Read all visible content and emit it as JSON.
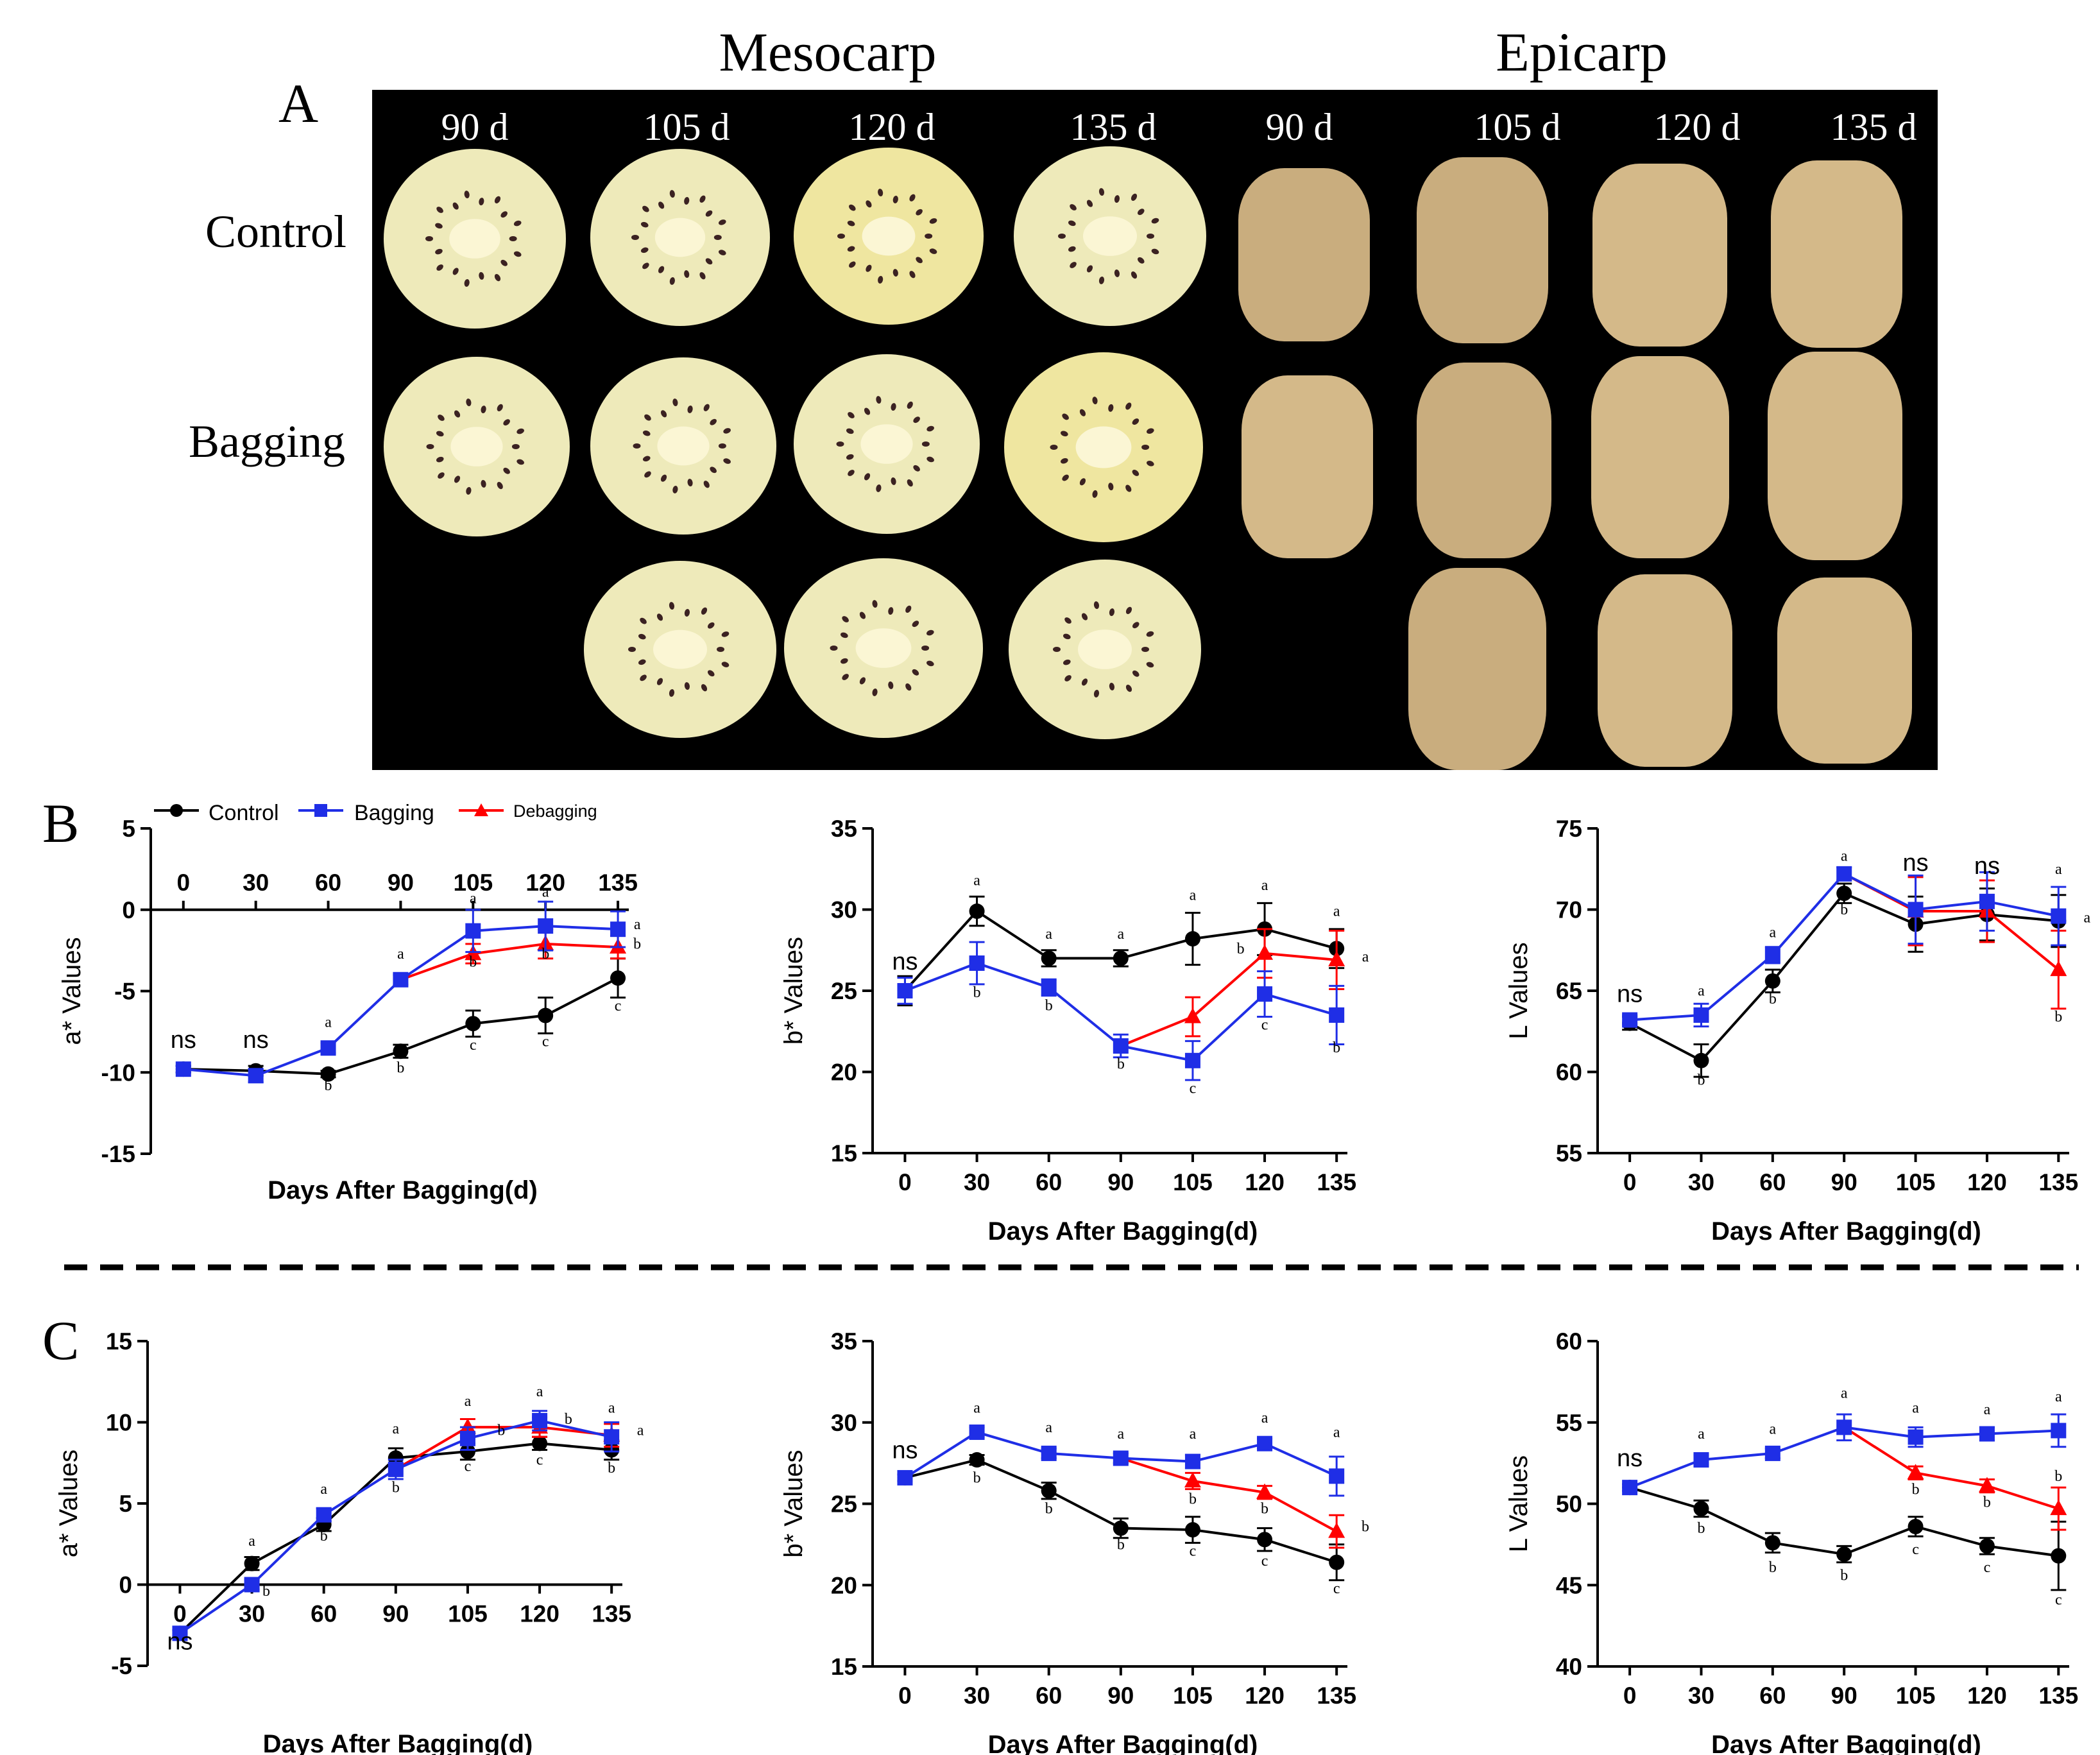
{
  "panel_a": {
    "label": "A",
    "group_titles": [
      "Mesocarp",
      "Epicarp"
    ],
    "stage_labels": [
      "90 d",
      "105 d",
      "120 d",
      "135 d",
      "90 d",
      "105 d",
      "120 d",
      "135 d"
    ],
    "row_labels": [
      "Control",
      "Bagging"
    ],
    "colors": {
      "background": "#000000",
      "flesh": "#eeeaba",
      "flesh_yellow": "#efe6a0",
      "core": "#fbf6d4",
      "seed": "#3b2222",
      "skin": "#c9ad7e",
      "skin_light": "#d4b989"
    }
  },
  "legend": {
    "control": "Control",
    "bagging": "Bagging",
    "debagging": "Debagging"
  },
  "series_colors": {
    "control": "#000000",
    "bagging": "#1f2ee6",
    "debagging": "#ff0000"
  },
  "panel_labels": {
    "b": "B",
    "c": "C"
  },
  "chart_data": [
    {
      "id": "B-a",
      "type": "line",
      "panel": "B",
      "title": "",
      "xlabel": "Days After Bagging(d)",
      "ylabel": "a* Values",
      "x": [
        0,
        30,
        60,
        90,
        105,
        120,
        135
      ],
      "xticks": [
        "0",
        "30",
        "60",
        "90",
        "105",
        "120",
        "135"
      ],
      "ylim": [
        -15,
        5
      ],
      "yticks": [
        "-15",
        "-10",
        "-5",
        "0",
        "5"
      ],
      "ytick_values": [
        -15,
        -10,
        -5,
        0,
        5
      ],
      "xaxis_at_zero": true,
      "series": [
        {
          "name": "Control",
          "values": [
            -9.8,
            -9.9,
            -10.1,
            -8.7,
            -7.0,
            -6.5,
            -4.2
          ],
          "errors": [
            0.2,
            0.3,
            0.2,
            0.4,
            0.8,
            1.1,
            1.2
          ]
        },
        {
          "name": "Bagging",
          "values": [
            -9.8,
            -10.2,
            -8.5,
            -4.3,
            -1.3,
            -1.0,
            -1.2
          ],
          "errors": [
            0.2,
            0.4,
            0.3,
            0.3,
            1.3,
            1.5,
            1.1
          ]
        },
        {
          "name": "Debagging",
          "values": [
            null,
            null,
            null,
            -4.3,
            -2.7,
            -2.1,
            -2.3
          ],
          "errors": [
            0,
            0,
            0,
            0,
            0.6,
            0.9,
            0.7
          ]
        }
      ],
      "annotations": [
        {
          "text": "ns",
          "x": 0,
          "y": -8.5,
          "size": "big"
        },
        {
          "text": "ns",
          "x": 30,
          "y": -8.5,
          "size": "big"
        },
        {
          "text": "a",
          "x": 60,
          "y": -7.2
        },
        {
          "text": "b",
          "x": 60,
          "y": -11.1
        },
        {
          "text": "a",
          "x": 90,
          "y": -3.0
        },
        {
          "text": "b",
          "x": 90,
          "y": -10.0
        },
        {
          "text": "a",
          "x": 105,
          "y": 0.4
        },
        {
          "text": "b",
          "x": 105,
          "y": -3.5
        },
        {
          "text": "c",
          "x": 105,
          "y": -8.6
        },
        {
          "text": "a",
          "x": 120,
          "y": 0.8
        },
        {
          "text": "b",
          "x": 120,
          "y": -3.0
        },
        {
          "text": "c",
          "x": 120,
          "y": -8.4
        },
        {
          "text": "a",
          "x": 139,
          "y": -1.2
        },
        {
          "text": "b",
          "x": 139,
          "y": -2.4
        },
        {
          "text": "c",
          "x": 135,
          "y": -6.2
        }
      ]
    },
    {
      "id": "B-b",
      "type": "line",
      "panel": "B",
      "title": "",
      "xlabel": "Days After Bagging(d)",
      "ylabel": "b* Values",
      "x": [
        0,
        30,
        60,
        90,
        105,
        120,
        135
      ],
      "xticks": [
        "0",
        "30",
        "60",
        "90",
        "105",
        "120",
        "135"
      ],
      "ylim": [
        15,
        35
      ],
      "yticks": [
        "15",
        "20",
        "25",
        "30",
        "35"
      ],
      "ytick_values": [
        15,
        20,
        25,
        30,
        35
      ],
      "series": [
        {
          "name": "Control",
          "values": [
            25.0,
            29.9,
            27.0,
            27.0,
            28.2,
            28.8,
            27.6
          ],
          "errors": [
            0.9,
            0.9,
            0.5,
            0.5,
            1.6,
            1.6,
            1.2
          ]
        },
        {
          "name": "Bagging",
          "values": [
            25.0,
            26.7,
            25.2,
            21.6,
            20.7,
            24.8,
            23.5
          ],
          "errors": [
            0.8,
            1.3,
            0.5,
            0.7,
            1.2,
            1.4,
            1.8
          ]
        },
        {
          "name": "Debagging",
          "values": [
            null,
            null,
            null,
            21.6,
            23.4,
            27.3,
            26.9
          ],
          "errors": [
            0,
            0,
            0,
            0,
            1.2,
            1.5,
            1.8
          ]
        }
      ],
      "annotations": [
        {
          "text": "ns",
          "x": 0,
          "y": 26.3,
          "size": "big"
        },
        {
          "text": "a",
          "x": 30,
          "y": 31.5
        },
        {
          "text": "b",
          "x": 30,
          "y": 24.6
        },
        {
          "text": "a",
          "x": 60,
          "y": 28.2
        },
        {
          "text": "b",
          "x": 60,
          "y": 23.8
        },
        {
          "text": "a",
          "x": 90,
          "y": 28.2
        },
        {
          "text": "b",
          "x": 90,
          "y": 20.2
        },
        {
          "text": "a",
          "x": 105,
          "y": 30.6
        },
        {
          "text": "c",
          "x": 105,
          "y": 18.7
        },
        {
          "text": "a",
          "x": 120,
          "y": 31.2
        },
        {
          "text": "b",
          "x": 115,
          "y": 27.3
        },
        {
          "text": "c",
          "x": 120,
          "y": 22.6
        },
        {
          "text": "a",
          "x": 135,
          "y": 29.6
        },
        {
          "text": "a",
          "x": 141,
          "y": 26.8
        },
        {
          "text": "b",
          "x": 135,
          "y": 21.2
        }
      ]
    },
    {
      "id": "B-L",
      "type": "line",
      "panel": "B",
      "title": "",
      "xlabel": "Days After Bagging(d)",
      "ylabel": "L  Values",
      "x": [
        0,
        30,
        60,
        90,
        105,
        120,
        135
      ],
      "xticks": [
        "0",
        "30",
        "60",
        "90",
        "105",
        "120",
        "135"
      ],
      "ylim": [
        55,
        75
      ],
      "yticks": [
        "55",
        "60",
        "65",
        "70",
        "75"
      ],
      "ytick_values": [
        55,
        60,
        65,
        70,
        75
      ],
      "series": [
        {
          "name": "Control",
          "values": [
            63.0,
            60.7,
            65.6,
            71.0,
            69.1,
            69.7,
            69.3
          ],
          "errors": [
            0.4,
            1.0,
            0.7,
            0.6,
            1.7,
            1.6,
            1.6
          ]
        },
        {
          "name": "Bagging",
          "values": [
            63.2,
            63.5,
            67.2,
            72.2,
            70.0,
            70.5,
            69.6
          ],
          "errors": [
            0.3,
            0.7,
            0.5,
            0.4,
            2.1,
            1.8,
            1.8
          ]
        },
        {
          "name": "Debagging",
          "values": [
            null,
            null,
            null,
            72.2,
            69.9,
            69.9,
            66.3
          ],
          "errors": [
            0,
            0,
            0,
            0,
            2.1,
            1.9,
            2.4
          ]
        }
      ],
      "annotations": [
        {
          "text": "ns",
          "x": 0,
          "y": 64.3,
          "size": "big"
        },
        {
          "text": "a",
          "x": 30,
          "y": 64.7
        },
        {
          "text": "b",
          "x": 30,
          "y": 59.2
        },
        {
          "text": "a",
          "x": 60,
          "y": 68.3
        },
        {
          "text": "b",
          "x": 60,
          "y": 64.2
        },
        {
          "text": "a",
          "x": 90,
          "y": 73.0
        },
        {
          "text": "b",
          "x": 90,
          "y": 69.7
        },
        {
          "text": "ns",
          "x": 105,
          "y": 72.4,
          "size": "big"
        },
        {
          "text": "ns",
          "x": 120,
          "y": 72.2,
          "size": "big"
        },
        {
          "text": "a",
          "x": 135,
          "y": 72.2
        },
        {
          "text": "a",
          "x": 141,
          "y": 69.2
        },
        {
          "text": "b",
          "x": 135,
          "y": 63.1
        }
      ]
    },
    {
      "id": "C-a",
      "type": "line",
      "panel": "C",
      "title": "",
      "xlabel": "Days After Bagging(d)",
      "ylabel": "a* Values",
      "x": [
        0,
        30,
        60,
        90,
        105,
        120,
        135
      ],
      "xticks": [
        "0",
        "30",
        "60",
        "90",
        "105",
        "120",
        "135"
      ],
      "ylim": [
        -5,
        15
      ],
      "yticks": [
        "-5",
        "0",
        "5",
        "10",
        "15"
      ],
      "ytick_values": [
        -5,
        0,
        5,
        10,
        15
      ],
      "xaxis_at_zero": true,
      "series": [
        {
          "name": "Control",
          "values": [
            -3.0,
            1.3,
            3.7,
            7.8,
            8.2,
            8.7,
            8.3
          ],
          "errors": [
            0.2,
            0.4,
            0.4,
            0.6,
            0.5,
            0.4,
            0.6
          ]
        },
        {
          "name": "Bagging",
          "values": [
            -3.0,
            0.0,
            4.3,
            7.1,
            9.0,
            10.1,
            9.1
          ],
          "errors": [
            0.2,
            0.3,
            0.4,
            0.6,
            0.7,
            0.6,
            0.9
          ]
        },
        {
          "name": "Debagging",
          "values": [
            null,
            null,
            null,
            7.1,
            9.7,
            9.7,
            9.2
          ],
          "errors": [
            0,
            0,
            0,
            0,
            0.5,
            0.6,
            0.7
          ]
        }
      ],
      "annotations": [
        {
          "text": "ns",
          "x": 0,
          "y": -4.0,
          "size": "big"
        },
        {
          "text": "a",
          "x": 30,
          "y": 2.4
        },
        {
          "text": "b",
          "x": 36,
          "y": -0.7
        },
        {
          "text": "a",
          "x": 60,
          "y": 5.6
        },
        {
          "text": "b",
          "x": 60,
          "y": 2.7
        },
        {
          "text": "a",
          "x": 90,
          "y": 9.3
        },
        {
          "text": "b",
          "x": 90,
          "y": 5.7
        },
        {
          "text": "a",
          "x": 105,
          "y": 11.0
        },
        {
          "text": "b",
          "x": 112,
          "y": 9.2
        },
        {
          "text": "c",
          "x": 105,
          "y": 7.0
        },
        {
          "text": "a",
          "x": 120,
          "y": 11.6
        },
        {
          "text": "b",
          "x": 126,
          "y": 9.9
        },
        {
          "text": "c",
          "x": 120,
          "y": 7.4
        },
        {
          "text": "a",
          "x": 135,
          "y": 10.6
        },
        {
          "text": "a",
          "x": 141,
          "y": 9.2
        },
        {
          "text": "b",
          "x": 135,
          "y": 6.9
        }
      ]
    },
    {
      "id": "C-b",
      "type": "line",
      "panel": "C",
      "title": "",
      "xlabel": "Days After Bagging(d)",
      "ylabel": "b* Values",
      "x": [
        0,
        30,
        60,
        90,
        105,
        120,
        135
      ],
      "xticks": [
        "0",
        "30",
        "60",
        "90",
        "105",
        "120",
        "135"
      ],
      "ylim": [
        15,
        35
      ],
      "yticks": [
        "15",
        "20",
        "25",
        "30",
        "35"
      ],
      "ytick_values": [
        15,
        20,
        25,
        30,
        35
      ],
      "series": [
        {
          "name": "Control",
          "values": [
            26.6,
            27.7,
            25.8,
            23.5,
            23.4,
            22.8,
            21.4
          ],
          "errors": [
            0.2,
            0.3,
            0.5,
            0.6,
            0.8,
            0.7,
            1.1
          ]
        },
        {
          "name": "Bagging",
          "values": [
            26.6,
            29.4,
            28.1,
            27.8,
            27.6,
            28.7,
            26.7
          ],
          "errors": [
            0.2,
            0.3,
            0.3,
            0.3,
            0.4,
            0.3,
            1.2
          ]
        },
        {
          "name": "Debagging",
          "values": [
            null,
            null,
            null,
            27.8,
            26.4,
            25.7,
            23.3
          ],
          "errors": [
            0,
            0,
            0,
            0,
            0.5,
            0.4,
            1.0
          ]
        }
      ],
      "annotations": [
        {
          "text": "ns",
          "x": 0,
          "y": 27.8,
          "size": "big"
        },
        {
          "text": "a",
          "x": 30,
          "y": 30.6
        },
        {
          "text": "b",
          "x": 30,
          "y": 26.3
        },
        {
          "text": "a",
          "x": 60,
          "y": 29.4
        },
        {
          "text": "b",
          "x": 60,
          "y": 24.4
        },
        {
          "text": "a",
          "x": 90,
          "y": 29.0
        },
        {
          "text": "b",
          "x": 90,
          "y": 22.2
        },
        {
          "text": "a",
          "x": 105,
          "y": 29.0
        },
        {
          "text": "b",
          "x": 105,
          "y": 25.0
        },
        {
          "text": "c",
          "x": 105,
          "y": 21.8
        },
        {
          "text": "a",
          "x": 120,
          "y": 30.0
        },
        {
          "text": "b",
          "x": 120,
          "y": 24.4
        },
        {
          "text": "c",
          "x": 120,
          "y": 21.2
        },
        {
          "text": "a",
          "x": 135,
          "y": 29.1
        },
        {
          "text": "b",
          "x": 141,
          "y": 23.3
        },
        {
          "text": "c",
          "x": 135,
          "y": 19.5
        }
      ]
    },
    {
      "id": "C-L",
      "type": "line",
      "panel": "C",
      "title": "",
      "xlabel": "Days After Bagging(d)",
      "ylabel": "L  Values",
      "x": [
        0,
        30,
        60,
        90,
        105,
        120,
        135
      ],
      "xticks": [
        "0",
        "30",
        "60",
        "90",
        "105",
        "120",
        "135"
      ],
      "ylim": [
        40,
        60
      ],
      "yticks": [
        "40",
        "45",
        "50",
        "55",
        "60"
      ],
      "ytick_values": [
        40,
        45,
        50,
        55,
        60
      ],
      "series": [
        {
          "name": "Control",
          "values": [
            51.0,
            49.7,
            47.6,
            46.9,
            48.6,
            47.4,
            46.8
          ],
          "errors": [
            0.2,
            0.5,
            0.6,
            0.5,
            0.6,
            0.5,
            2.1
          ]
        },
        {
          "name": "Bagging",
          "values": [
            51.0,
            52.7,
            53.1,
            54.7,
            54.1,
            54.3,
            54.5
          ],
          "errors": [
            0.2,
            0.3,
            0.3,
            0.8,
            0.6,
            0.4,
            1.0
          ]
        },
        {
          "name": "Debagging",
          "values": [
            null,
            null,
            null,
            54.7,
            51.9,
            51.1,
            49.7
          ],
          "errors": [
            0,
            0,
            0,
            0,
            0.4,
            0.4,
            1.3
          ]
        }
      ],
      "annotations": [
        {
          "text": "ns",
          "x": 0,
          "y": 52.3,
          "size": "big"
        },
        {
          "text": "a",
          "x": 30,
          "y": 54.0
        },
        {
          "text": "b",
          "x": 30,
          "y": 48.2
        },
        {
          "text": "a",
          "x": 60,
          "y": 54.3
        },
        {
          "text": "b",
          "x": 60,
          "y": 45.8
        },
        {
          "text": "a",
          "x": 90,
          "y": 56.5
        },
        {
          "text": "b",
          "x": 90,
          "y": 45.3
        },
        {
          "text": "a",
          "x": 105,
          "y": 55.6
        },
        {
          "text": "b",
          "x": 105,
          "y": 50.6
        },
        {
          "text": "c",
          "x": 105,
          "y": 46.9
        },
        {
          "text": "a",
          "x": 120,
          "y": 55.5
        },
        {
          "text": "b",
          "x": 120,
          "y": 49.8
        },
        {
          "text": "c",
          "x": 120,
          "y": 45.8
        },
        {
          "text": "a",
          "x": 135,
          "y": 56.3
        },
        {
          "text": "b",
          "x": 135,
          "y": 51.4
        },
        {
          "text": "c",
          "x": 135,
          "y": 43.8
        }
      ]
    }
  ]
}
